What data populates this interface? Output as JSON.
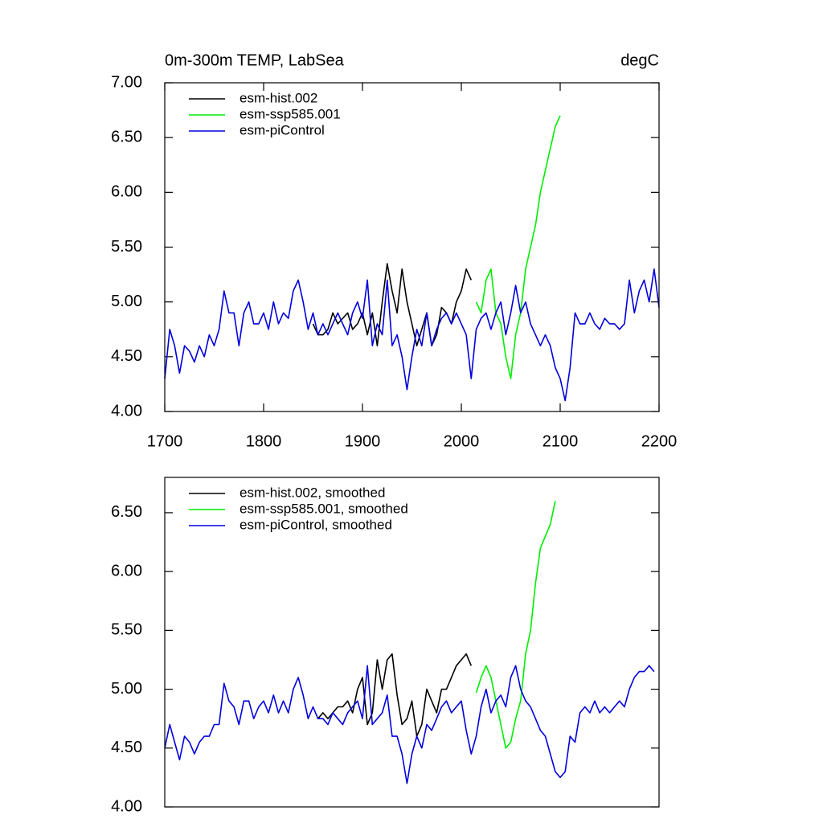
{
  "chart_data": [
    {
      "type": "line",
      "title": "0m-300m TEMP, LabSea",
      "right_title": "degC",
      "xlim": [
        1700,
        2200
      ],
      "xticks": [
        1700,
        1800,
        1900,
        2000,
        2100,
        2200
      ],
      "ylim": [
        4,
        7
      ],
      "yticks": [
        {
          "value": 4,
          "label": "4.00"
        },
        {
          "value": 4.5,
          "label": "4.50"
        },
        {
          "value": 5,
          "label": "5.00"
        },
        {
          "value": 5.5,
          "label": "5.50"
        },
        {
          "value": 6,
          "label": "6.00"
        },
        {
          "value": 6.5,
          "label": "6.50"
        },
        {
          "value": 7,
          "label": "7.00"
        }
      ],
      "series": [
        {
          "name": "esm-hist.002",
          "color": "#000000",
          "x": [
            1850,
            1855,
            1860,
            1865,
            1870,
            1875,
            1880,
            1885,
            1890,
            1895,
            1900,
            1905,
            1910,
            1915,
            1920,
            1925,
            1930,
            1935,
            1940,
            1945,
            1950,
            1955,
            1960,
            1965,
            1970,
            1975,
            1980,
            1985,
            1990,
            1995,
            2000,
            2005,
            2010
          ],
          "values": [
            4.8,
            4.7,
            4.7,
            4.75,
            4.9,
            4.8,
            4.85,
            4.9,
            4.75,
            4.8,
            4.9,
            4.7,
            4.9,
            4.6,
            5.0,
            5.35,
            5.1,
            4.9,
            5.3,
            5.0,
            4.8,
            4.6,
            4.75,
            4.9,
            4.6,
            4.7,
            4.95,
            4.9,
            4.8,
            5.0,
            5.1,
            5.3,
            5.2
          ]
        },
        {
          "name": "esm-ssp585.001",
          "color": "#00ee00",
          "x": [
            2015,
            2020,
            2025,
            2030,
            2035,
            2040,
            2045,
            2050,
            2055,
            2060,
            2065,
            2070,
            2075,
            2080,
            2085,
            2090,
            2095,
            2100
          ],
          "values": [
            5.0,
            4.9,
            5.2,
            5.3,
            4.9,
            4.8,
            4.5,
            4.3,
            4.7,
            4.9,
            5.3,
            5.5,
            5.7,
            6.0,
            6.2,
            6.4,
            6.6,
            6.7
          ]
        },
        {
          "name": "esm-piControl",
          "color": "#0000dd",
          "x": [
            1700,
            1705,
            1710,
            1715,
            1720,
            1725,
            1730,
            1735,
            1740,
            1745,
            1750,
            1755,
            1760,
            1765,
            1770,
            1775,
            1780,
            1785,
            1790,
            1795,
            1800,
            1805,
            1810,
            1815,
            1820,
            1825,
            1830,
            1835,
            1840,
            1845,
            1850,
            1855,
            1860,
            1865,
            1870,
            1875,
            1880,
            1885,
            1890,
            1895,
            1900,
            1905,
            1910,
            1915,
            1920,
            1925,
            1930,
            1935,
            1940,
            1945,
            1950,
            1955,
            1960,
            1965,
            1970,
            1975,
            1980,
            1985,
            1990,
            1995,
            2000,
            2005,
            2010,
            2015,
            2020,
            2025,
            2030,
            2035,
            2040,
            2045,
            2050,
            2055,
            2060,
            2065,
            2070,
            2075,
            2080,
            2085,
            2090,
            2095,
            2100,
            2105,
            2110,
            2115,
            2120,
            2125,
            2130,
            2135,
            2140,
            2145,
            2150,
            2155,
            2160,
            2165,
            2170,
            2175,
            2180,
            2185,
            2190,
            2195,
            2200
          ],
          "values": [
            4.3,
            4.75,
            4.6,
            4.35,
            4.6,
            4.55,
            4.45,
            4.6,
            4.5,
            4.7,
            4.6,
            4.75,
            5.1,
            4.9,
            4.9,
            4.6,
            4.9,
            5.0,
            4.8,
            4.8,
            4.9,
            4.75,
            5.0,
            4.8,
            4.9,
            4.85,
            5.1,
            5.2,
            5.0,
            4.75,
            4.9,
            4.7,
            4.8,
            4.7,
            4.8,
            4.9,
            4.8,
            4.7,
            4.9,
            5.0,
            4.85,
            5.2,
            4.6,
            4.8,
            4.7,
            5.2,
            4.6,
            4.7,
            4.5,
            4.2,
            4.5,
            4.75,
            4.6,
            4.9,
            4.6,
            4.75,
            4.85,
            4.9,
            4.8,
            4.9,
            4.8,
            4.7,
            4.3,
            4.75,
            4.85,
            4.9,
            4.75,
            4.9,
            5.0,
            4.7,
            4.9,
            5.15,
            4.9,
            5.0,
            4.8,
            4.7,
            4.6,
            4.7,
            4.6,
            4.4,
            4.3,
            4.1,
            4.4,
            4.9,
            4.8,
            4.8,
            4.9,
            4.8,
            4.75,
            4.85,
            4.8,
            4.8,
            4.75,
            4.8,
            5.2,
            4.9,
            5.1,
            5.2,
            5.0,
            5.3,
            4.95
          ]
        }
      ]
    },
    {
      "type": "line",
      "xlim": [
        1700,
        2200
      ],
      "ylim": [
        4,
        6.8
      ],
      "yticks": [
        {
          "value": 4,
          "label": "4.00"
        },
        {
          "value": 4.5,
          "label": "4.50"
        },
        {
          "value": 5,
          "label": "5.00"
        },
        {
          "value": 5.5,
          "label": "5.50"
        },
        {
          "value": 6,
          "label": "6.00"
        },
        {
          "value": 6.5,
          "label": "6.50"
        }
      ],
      "series": [
        {
          "name": "esm-hist.002, smoothed",
          "color": "#000000",
          "x": [
            1855,
            1860,
            1865,
            1870,
            1875,
            1880,
            1885,
            1890,
            1895,
            1900,
            1905,
            1910,
            1915,
            1920,
            1925,
            1930,
            1935,
            1940,
            1945,
            1950,
            1955,
            1960,
            1965,
            1970,
            1975,
            1980,
            1985,
            1990,
            1995,
            2000,
            2005,
            2010
          ],
          "values": [
            4.75,
            4.8,
            4.75,
            4.8,
            4.85,
            4.85,
            4.9,
            4.8,
            5.0,
            5.1,
            4.7,
            4.8,
            5.25,
            5.0,
            5.25,
            5.3,
            4.95,
            4.7,
            4.75,
            4.9,
            4.6,
            4.7,
            5.0,
            4.9,
            4.8,
            5.0,
            5.0,
            5.1,
            5.2,
            5.25,
            5.3,
            5.2
          ]
        },
        {
          "name": "esm-ssp585.001, smoothed",
          "color": "#00ee00",
          "x": [
            2015,
            2020,
            2025,
            2030,
            2035,
            2040,
            2045,
            2050,
            2055,
            2060,
            2065,
            2070,
            2075,
            2080,
            2085,
            2090,
            2095
          ],
          "values": [
            4.97,
            5.1,
            5.2,
            5.1,
            4.9,
            4.7,
            4.5,
            4.55,
            4.75,
            4.9,
            5.3,
            5.5,
            5.9,
            6.2,
            6.3,
            6.4,
            6.6
          ]
        },
        {
          "name": "esm-piControl, smoothed",
          "color": "#0000dd",
          "x": [
            1700,
            1705,
            1710,
            1715,
            1720,
            1725,
            1730,
            1735,
            1740,
            1745,
            1750,
            1755,
            1760,
            1765,
            1770,
            1775,
            1780,
            1785,
            1790,
            1795,
            1800,
            1805,
            1810,
            1815,
            1820,
            1825,
            1830,
            1835,
            1840,
            1845,
            1850,
            1855,
            1860,
            1865,
            1870,
            1875,
            1880,
            1885,
            1890,
            1895,
            1900,
            1905,
            1910,
            1915,
            1920,
            1925,
            1930,
            1935,
            1940,
            1945,
            1950,
            1955,
            1960,
            1965,
            1970,
            1975,
            1980,
            1985,
            1990,
            1995,
            2000,
            2005,
            2010,
            2015,
            2020,
            2025,
            2030,
            2035,
            2040,
            2045,
            2050,
            2055,
            2060,
            2065,
            2070,
            2075,
            2080,
            2085,
            2090,
            2095,
            2100,
            2105,
            2110,
            2115,
            2120,
            2125,
            2130,
            2135,
            2140,
            2145,
            2150,
            2155,
            2160,
            2165,
            2170,
            2175,
            2180,
            2185,
            2190,
            2195
          ],
          "values": [
            4.5,
            4.7,
            4.55,
            4.4,
            4.6,
            4.55,
            4.45,
            4.55,
            4.6,
            4.6,
            4.7,
            4.7,
            5.05,
            4.9,
            4.85,
            4.7,
            4.9,
            4.9,
            4.75,
            4.85,
            4.9,
            4.8,
            4.95,
            4.8,
            4.9,
            4.8,
            5.0,
            5.1,
            4.95,
            4.75,
            4.85,
            4.75,
            4.75,
            4.7,
            4.8,
            4.75,
            4.7,
            4.8,
            4.85,
            4.9,
            4.75,
            5.2,
            4.7,
            4.75,
            4.8,
            4.95,
            4.6,
            4.6,
            4.45,
            4.2,
            4.45,
            4.6,
            4.5,
            4.7,
            4.65,
            4.75,
            4.85,
            4.9,
            4.8,
            4.85,
            4.9,
            4.65,
            4.45,
            4.6,
            4.85,
            5.0,
            4.8,
            4.9,
            4.95,
            4.85,
            5.1,
            5.2,
            5.0,
            4.9,
            4.85,
            4.75,
            4.65,
            4.6,
            4.45,
            4.3,
            4.25,
            4.3,
            4.6,
            4.55,
            4.8,
            4.85,
            4.8,
            4.9,
            4.8,
            4.85,
            4.8,
            4.85,
            4.9,
            4.85,
            5.0,
            5.1,
            5.15,
            5.15,
            5.2,
            5.15
          ]
        }
      ]
    }
  ]
}
